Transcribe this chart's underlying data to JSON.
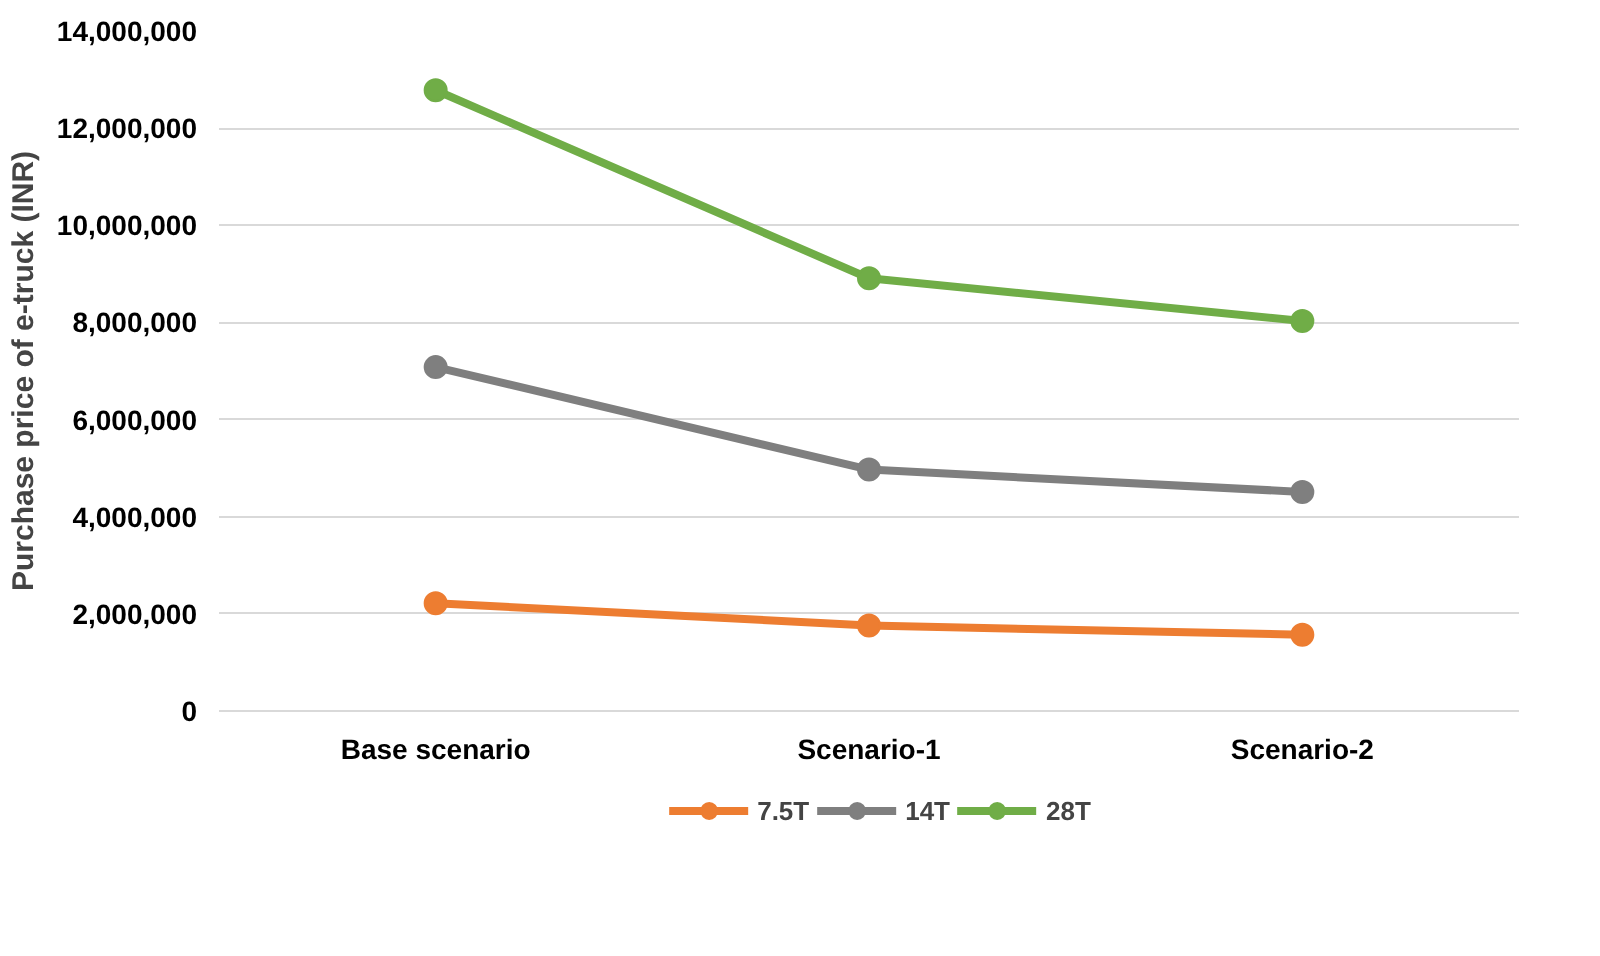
{
  "chart_data": {
    "type": "line",
    "ylabel": "Purchase price of e-truck (INR)",
    "categories": [
      "Base scenario",
      "Scenario-1",
      "Scenario-2"
    ],
    "series": [
      {
        "name": "7.5T",
        "color": "#ed7d31",
        "values": [
          2220000,
          1760000,
          1570000
        ]
      },
      {
        "name": "14T",
        "color": "#7f7f7f",
        "values": [
          7080000,
          4970000,
          4510000
        ]
      },
      {
        "name": "28T",
        "color": "#70ad47",
        "values": [
          12780000,
          8910000,
          8030000
        ]
      }
    ],
    "ylim": [
      0,
      14000000
    ],
    "yticks": [
      {
        "value": 0,
        "label": "0"
      },
      {
        "value": 2000000,
        "label": "2,000,000"
      },
      {
        "value": 4000000,
        "label": "4,000,000"
      },
      {
        "value": 6000000,
        "label": "6,000,000"
      },
      {
        "value": 8000000,
        "label": "8,000,000"
      },
      {
        "value": 10000000,
        "label": "10,000,000"
      },
      {
        "value": 12000000,
        "label": "12,000,000"
      },
      {
        "value": 14000000,
        "label": "14,000,000"
      }
    ],
    "grid": "y",
    "legend": "bottom",
    "marker": "circle",
    "line_style": "solid"
  }
}
